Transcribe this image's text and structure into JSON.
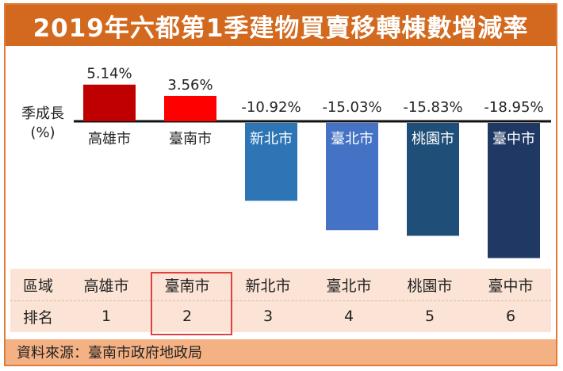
{
  "title": "2019年六都第1季建物買賣移轉棟數增減率",
  "chart_data": {
    "type": "bar",
    "ylabel": "季成長\n(%)",
    "categories": [
      "高雄市",
      "臺南市",
      "新北市",
      "臺北市",
      "桃園市",
      "臺中市"
    ],
    "values": [
      5.14,
      3.56,
      -10.92,
      -15.03,
      -15.83,
      -18.95
    ],
    "value_labels": [
      "5.14%",
      "3.56%",
      "-10.92%",
      "-15.03%",
      "-15.83%",
      "-18.95%"
    ],
    "colors": [
      "#c00000",
      "#ff0000",
      "#2e75b6",
      "#4472c4",
      "#1f4e79",
      "#1f3864"
    ],
    "label_colors": [
      "#222222",
      "#222222",
      "#ffffff",
      "#ffffff",
      "#ffffff",
      "#ffffff"
    ]
  },
  "table": {
    "row1_header": "區域",
    "row2_header": "排名",
    "regions": [
      "高雄市",
      "臺南市",
      "新北市",
      "臺北市",
      "桃園市",
      "臺中市"
    ],
    "ranks": [
      "1",
      "2",
      "3",
      "4",
      "5",
      "6"
    ],
    "highlighted_region": "臺南市"
  },
  "source": "資料來源：臺南市政府地政局"
}
